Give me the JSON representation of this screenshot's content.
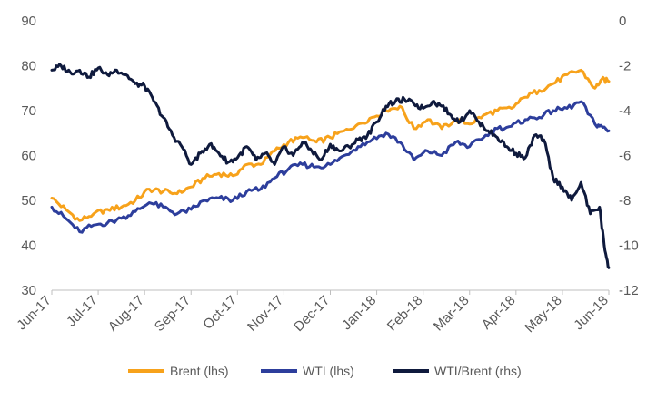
{
  "chart_data": {
    "type": "line",
    "title": "",
    "xlabel": "",
    "ylabel_left": "",
    "ylabel_right": "",
    "x_ticks": [
      "Jun-17",
      "Jul-17",
      "Aug-17",
      "Sep-17",
      "Oct-17",
      "Nov-17",
      "Dec-17",
      "Jan-18",
      "Feb-18",
      "Mar-18",
      "Apr-18",
      "May-18",
      "Jun-18"
    ],
    "ylim_left": [
      30,
      90
    ],
    "yticks_left": [
      "30",
      "40",
      "50",
      "60",
      "70",
      "80",
      "90"
    ],
    "ylim_right": [
      -12,
      0
    ],
    "yticks_right": [
      "-12",
      "-10",
      "-8",
      "-6",
      "-4",
      "-2",
      "0"
    ],
    "legend_position": "bottom",
    "grid": false,
    "series": [
      {
        "name": "Brent (lhs)",
        "axis": "left",
        "color": "#F7A21B",
        "x": [
          0,
          0.3,
          0.6,
          0.9,
          1.2,
          1.5,
          1.8,
          2.1,
          2.4,
          2.7,
          3.0,
          3.3,
          3.6,
          3.9,
          4.2,
          4.5,
          4.8,
          5.1,
          5.4,
          5.7,
          6.0,
          6.3,
          6.6,
          6.9,
          7.2,
          7.5,
          7.8,
          8.1,
          8.4,
          8.7,
          9.0,
          9.3,
          9.6,
          9.9,
          10.2,
          10.5,
          10.8,
          11.1,
          11.4,
          11.7,
          11.85,
          12.0
        ],
        "y": [
          50.5,
          48,
          45.5,
          47,
          48,
          48.5,
          50,
          52.5,
          52,
          51.5,
          53,
          55,
          56,
          55.5,
          58,
          58,
          61,
          63,
          64,
          63,
          64,
          65.5,
          67,
          68.5,
          70,
          71,
          66,
          68,
          66,
          68,
          67,
          69,
          70,
          70.5,
          73,
          74.5,
          76,
          78,
          79,
          75,
          77,
          76.5
        ]
      },
      {
        "name": "WTI (lhs)",
        "axis": "left",
        "color": "#2D3E9C",
        "x": [
          0,
          0.3,
          0.6,
          0.9,
          1.2,
          1.5,
          1.8,
          2.1,
          2.4,
          2.7,
          3.0,
          3.3,
          3.6,
          3.9,
          4.2,
          4.5,
          4.8,
          5.1,
          5.4,
          5.7,
          6.0,
          6.3,
          6.6,
          6.9,
          7.2,
          7.5,
          7.8,
          8.1,
          8.4,
          8.7,
          9.0,
          9.3,
          9.6,
          9.9,
          10.2,
          10.5,
          10.8,
          11.1,
          11.4,
          11.7,
          11.85,
          12.0
        ],
        "y": [
          48.5,
          46,
          43,
          44.5,
          45,
          46,
          47.5,
          49.5,
          48.5,
          47,
          48,
          50,
          50.5,
          50,
          52,
          52.5,
          55,
          57,
          58,
          57.5,
          58,
          60,
          62,
          63.5,
          65,
          63,
          59,
          61,
          60,
          63,
          62,
          64,
          66,
          66.5,
          68,
          68.5,
          70,
          70.5,
          72,
          67,
          66.5,
          65.5
        ]
      },
      {
        "name": "WTI/Brent (rhs)",
        "axis": "right",
        "color": "#0F1A3D",
        "x": [
          0,
          0.2,
          0.4,
          0.6,
          0.8,
          1.0,
          1.2,
          1.4,
          1.6,
          1.8,
          2.0,
          2.2,
          2.4,
          2.6,
          2.8,
          3.0,
          3.2,
          3.4,
          3.6,
          3.8,
          4.0,
          4.2,
          4.4,
          4.6,
          4.8,
          5.0,
          5.2,
          5.4,
          5.6,
          5.8,
          6.0,
          6.2,
          6.4,
          6.6,
          6.8,
          7.0,
          7.2,
          7.4,
          7.6,
          7.8,
          8.0,
          8.2,
          8.4,
          8.6,
          8.8,
          9.0,
          9.2,
          9.4,
          9.6,
          9.8,
          10.0,
          10.2,
          10.4,
          10.6,
          10.8,
          11.0,
          11.2,
          11.4,
          11.6,
          11.8,
          11.9,
          12.0
        ],
        "y": [
          -2.2,
          -2.0,
          -2.3,
          -2.2,
          -2.5,
          -2.1,
          -2.4,
          -2.2,
          -2.4,
          -2.8,
          -2.9,
          -3.6,
          -4.3,
          -5.1,
          -5.6,
          -6.4,
          -5.9,
          -5.5,
          -5.9,
          -6.3,
          -6.1,
          -5.6,
          -6.2,
          -5.9,
          -6.4,
          -5.6,
          -6.0,
          -5.4,
          -5.8,
          -6.2,
          -5.5,
          -5.8,
          -5.6,
          -5.3,
          -5.1,
          -4.5,
          -3.8,
          -3.6,
          -3.5,
          -3.7,
          -3.9,
          -3.6,
          -3.8,
          -4.2,
          -4.5,
          -4.0,
          -4.5,
          -4.9,
          -5.2,
          -5.6,
          -5.9,
          -6.1,
          -5.1,
          -5.3,
          -7.0,
          -7.4,
          -8.0,
          -7.2,
          -8.6,
          -8.3,
          -10.0,
          -11.0
        ]
      }
    ]
  }
}
